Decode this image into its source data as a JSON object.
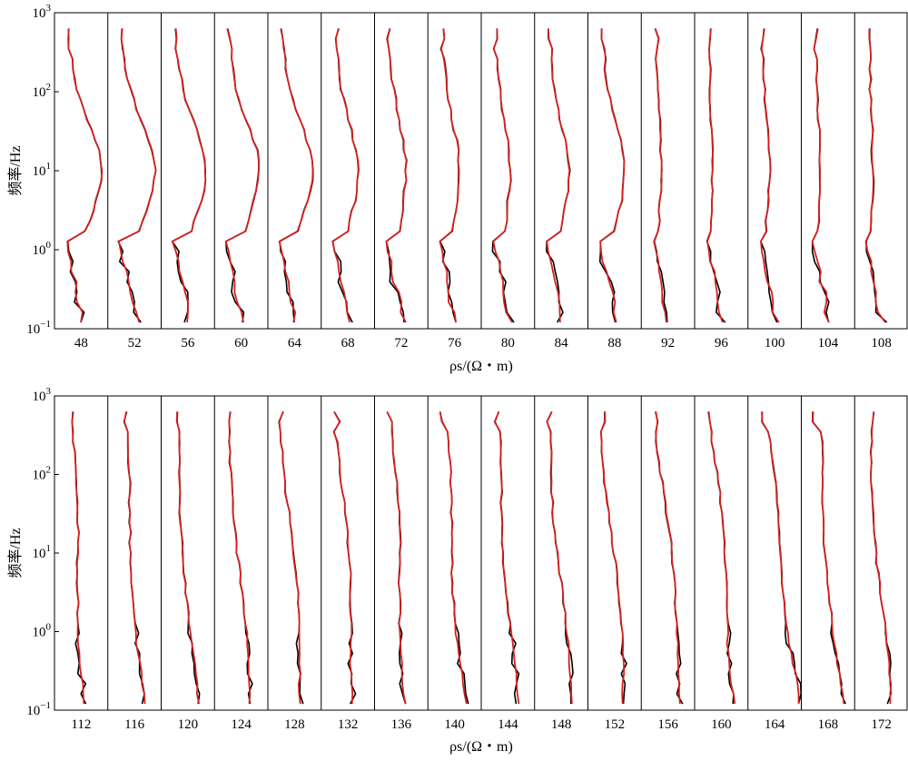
{
  "chart_data": [
    {
      "type": "line",
      "ylabel": "频率/Hz",
      "xlabel": "ρs/(Ω・m)",
      "yscale": "log",
      "ylim": [
        0.1,
        1000
      ],
      "yticks": [
        "10³",
        "10²",
        "10¹",
        "10⁰",
        "10⁻¹"
      ],
      "yticks_base": [
        "10",
        "10",
        "10",
        "10",
        "10"
      ],
      "yticks_exp": [
        "3",
        "2",
        "1",
        "0",
        "−1"
      ],
      "grid": false,
      "series_colors": {
        "observed": "#000000",
        "fitted": "#d42020"
      },
      "panels": [
        "48",
        "52",
        "56",
        "60",
        "64",
        "68",
        "72",
        "76",
        "80",
        "84",
        "88",
        "92",
        "96",
        "100",
        "104",
        "108"
      ]
    },
    {
      "type": "line",
      "ylabel": "频率/Hz",
      "xlabel": "ρs/(Ω・m)",
      "yscale": "log",
      "ylim": [
        0.1,
        1000
      ],
      "yticks": [
        "10³",
        "10²",
        "10¹",
        "10⁰",
        "10⁻¹"
      ],
      "yticks_base": [
        "10",
        "10",
        "10",
        "10",
        "10"
      ],
      "yticks_exp": [
        "3",
        "2",
        "1",
        "0",
        "−1"
      ],
      "grid": false,
      "series_colors": {
        "observed": "#000000",
        "fitted": "#d42020"
      },
      "panels": [
        "112",
        "116",
        "120",
        "124",
        "128",
        "132",
        "136",
        "140",
        "144",
        "148",
        "152",
        "156",
        "160",
        "164",
        "168",
        "172"
      ]
    }
  ]
}
